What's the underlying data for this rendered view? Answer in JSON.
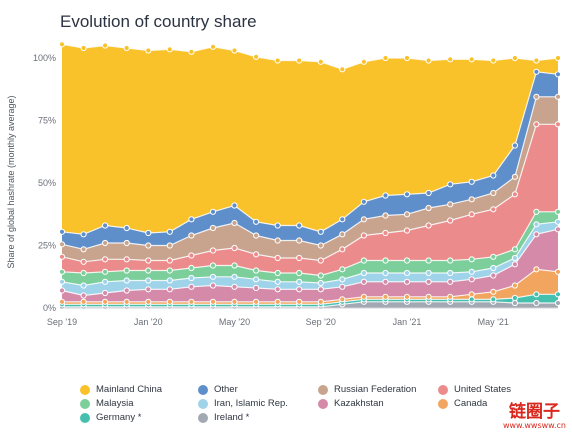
{
  "chart_data": {
    "type": "area",
    "title": "Evolution of country share",
    "ylabel": "Share of global hashrate (monthly average)",
    "ylim": [
      0,
      100
    ],
    "yticks": [
      "0%",
      "25%",
      "50%",
      "75%",
      "100%"
    ],
    "xticks": [
      {
        "label": "Sep '19",
        "index": 0
      },
      {
        "label": "Jan '20",
        "index": 4
      },
      {
        "label": "May '20",
        "index": 8
      },
      {
        "label": "Sep '20",
        "index": 12
      },
      {
        "label": "Jan '21",
        "index": 16
      },
      {
        "label": "May '21",
        "index": 20
      }
    ],
    "x": [
      "2019-09",
      "2019-10",
      "2019-11",
      "2019-12",
      "2020-01",
      "2020-02",
      "2020-03",
      "2020-04",
      "2020-05",
      "2020-06",
      "2020-07",
      "2020-08",
      "2020-09",
      "2020-10",
      "2020-11",
      "2020-12",
      "2021-01",
      "2021-02",
      "2021-03",
      "2021-04",
      "2021-05",
      "2021-06",
      "2021-07",
      "2021-08"
    ],
    "stacked": true,
    "series": [
      {
        "name": "Ireland *",
        "color": "#a3a9b3",
        "values": [
          0.5,
          0.5,
          0.5,
          0.5,
          0.5,
          0.5,
          0.5,
          0.5,
          0.5,
          0.5,
          0.5,
          0.5,
          0.5,
          1.5,
          2.5,
          2.5,
          2.5,
          2.5,
          2.5,
          2.5,
          2.5,
          2,
          2,
          2
        ]
      },
      {
        "name": "Germany *",
        "color": "#45c0ae",
        "values": [
          1,
          1,
          1,
          1,
          1,
          1,
          1,
          1,
          1,
          1,
          1,
          1,
          1,
          1,
          1,
          1,
          1,
          1,
          1,
          1,
          1,
          2,
          3.5,
          3.5
        ]
      },
      {
        "name": "Canada",
        "color": "#f2a55f",
        "values": [
          1,
          1,
          1,
          1,
          1,
          1,
          1,
          1,
          1,
          1,
          1,
          1,
          1,
          1,
          1,
          1,
          1,
          1,
          1,
          2,
          3,
          5,
          10,
          9
        ]
      },
      {
        "name": "Kazakhstan",
        "color": "#d48aa8",
        "values": [
          4.5,
          2.5,
          3.5,
          4.5,
          5,
          5,
          6,
          6.5,
          6,
          5.5,
          5,
          5,
          5,
          5,
          6,
          6,
          6,
          6,
          6,
          6,
          6.5,
          8.5,
          14,
          17
        ]
      },
      {
        "name": "Iran, Islamic Rep.",
        "color": "#9fd3ea",
        "values": [
          3.5,
          4,
          4.5,
          4,
          3.5,
          3.5,
          3.5,
          3.5,
          4,
          3.5,
          3,
          3,
          2.5,
          3,
          3.5,
          3.5,
          3.5,
          3.5,
          3.5,
          3,
          3,
          2.5,
          4,
          3
        ]
      },
      {
        "name": "Malaysia",
        "color": "#7ccf9a",
        "values": [
          4,
          5,
          4,
          4,
          4,
          4,
          4,
          4.5,
          4.5,
          3.5,
          3.5,
          3.5,
          3,
          4,
          5,
          5,
          5,
          5,
          5,
          5,
          4.5,
          3.5,
          5,
          4
        ]
      },
      {
        "name": "United States",
        "color": "#ec8b8b",
        "values": [
          6,
          4.5,
          5,
          4.5,
          4,
          4,
          5,
          6,
          7,
          6.5,
          6,
          6,
          6,
          8,
          10,
          11,
          12,
          14,
          16,
          18,
          19,
          22,
          35,
          35
        ]
      },
      {
        "name": "Russian Federation",
        "color": "#c8a48e",
        "values": [
          5,
          5,
          6.5,
          6.5,
          6,
          6,
          8,
          9,
          10,
          7.5,
          7,
          7,
          6,
          6,
          6.5,
          7,
          6.5,
          7,
          6.5,
          6,
          6.5,
          7,
          11,
          11
        ]
      },
      {
        "name": "Other",
        "color": "#5f8fcb",
        "values": [
          5,
          6,
          7,
          6,
          5,
          5.5,
          6.5,
          6.5,
          7,
          5.5,
          6,
          6,
          5.5,
          6,
          7,
          8,
          8,
          6,
          8,
          7,
          7,
          12.5,
          10,
          9
        ]
      },
      {
        "name": "Mainland China",
        "color": "#f9c22b",
        "values": [
          75,
          74.5,
          72,
          72,
          73,
          73,
          67,
          66,
          62,
          66,
          66,
          66,
          68,
          60,
          56,
          55,
          54.5,
          53,
          50,
          49,
          46,
          35,
          4.5,
          6.5
        ]
      }
    ],
    "legend": {
      "placement": "bottom",
      "columns": 4
    },
    "grid": false
  },
  "legend_rows": [
    [
      "Mainland China",
      "Other",
      "Russian Federation",
      "United States"
    ],
    [
      "Malaysia",
      "Iran, Islamic Rep.",
      "Kazakhstan",
      "Canada"
    ],
    [
      "Germany *",
      "Ireland *"
    ]
  ],
  "watermark": {
    "main": "链圈子",
    "sub": "www.wwsww.cn"
  }
}
